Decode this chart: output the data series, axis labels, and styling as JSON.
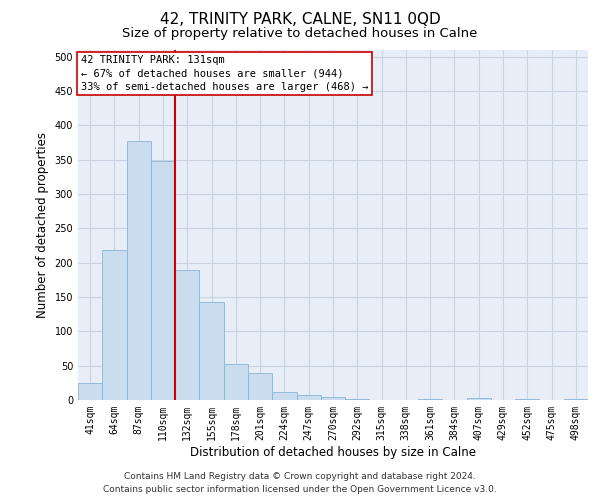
{
  "title": "42, TRINITY PARK, CALNE, SN11 0QD",
  "subtitle": "Size of property relative to detached houses in Calne",
  "xlabel": "Distribution of detached houses by size in Calne",
  "ylabel": "Number of detached properties",
  "footer_line1": "Contains HM Land Registry data © Crown copyright and database right 2024.",
  "footer_line2": "Contains public sector information licensed under the Open Government Licence v3.0.",
  "annotation_line1": "42 TRINITY PARK: 131sqm",
  "annotation_line2": "← 67% of detached houses are smaller (944)",
  "annotation_line3": "33% of semi-detached houses are larger (468) →",
  "bar_labels": [
    "41sqm",
    "64sqm",
    "87sqm",
    "110sqm",
    "132sqm",
    "155sqm",
    "178sqm",
    "201sqm",
    "224sqm",
    "247sqm",
    "270sqm",
    "292sqm",
    "315sqm",
    "338sqm",
    "361sqm",
    "384sqm",
    "407sqm",
    "429sqm",
    "452sqm",
    "475sqm",
    "498sqm"
  ],
  "bar_values": [
    25,
    218,
    378,
    348,
    190,
    143,
    53,
    40,
    12,
    8,
    5,
    1,
    0,
    0,
    2,
    0,
    3,
    0,
    1,
    0,
    2
  ],
  "bar_color": "#c9ddef",
  "bar_edge_color": "#8ab4d4",
  "vline_color": "#cc0000",
  "ylim": [
    0,
    510
  ],
  "yticks": [
    0,
    50,
    100,
    150,
    200,
    250,
    300,
    350,
    400,
    450,
    500
  ],
  "grid_color": "#c8d4e4",
  "background_color": "#e8eef8",
  "box_edge_color": "#cc0000",
  "title_fontsize": 11,
  "subtitle_fontsize": 9.5,
  "label_fontsize": 8.5,
  "tick_fontsize": 7,
  "annotation_fontsize": 7.5,
  "footer_fontsize": 6.5
}
